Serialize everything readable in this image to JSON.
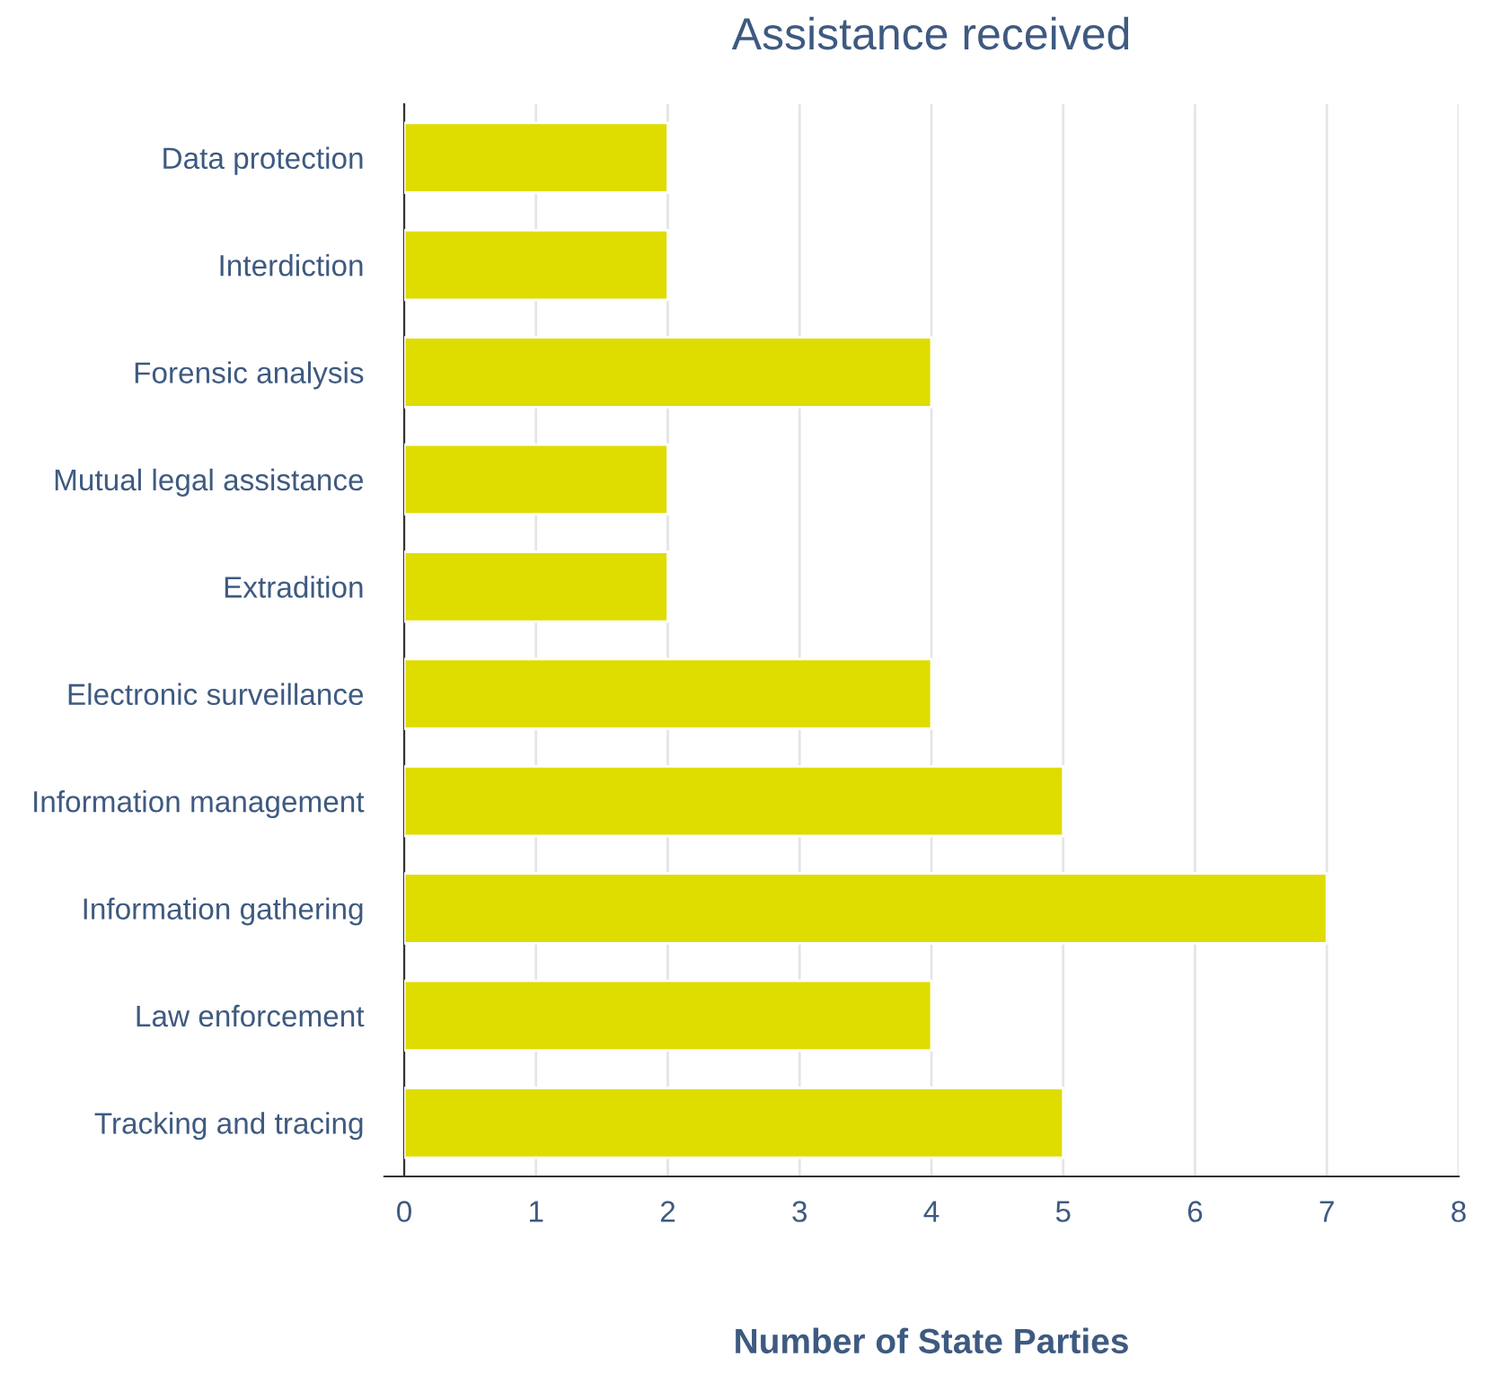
{
  "chart_data": {
    "type": "bar",
    "orientation": "horizontal",
    "title": "Assistance received",
    "xlabel": "Number of State Parties",
    "categories": [
      "Data protection",
      "Interdiction",
      "Forensic analysis",
      "Mutual legal assistance",
      "Extradition",
      "Electronic surveillance",
      "Information management",
      "Information gathering",
      "Law enforcement",
      "Tracking and tracing"
    ],
    "values": [
      2,
      2,
      4,
      2,
      2,
      4,
      5,
      7,
      4,
      5
    ],
    "color": "#dfdc00",
    "xlim": [
      0,
      8
    ],
    "xticks": [
      0,
      1,
      2,
      3,
      4,
      5,
      6,
      7,
      8
    ],
    "grid": "x",
    "legend": false
  }
}
